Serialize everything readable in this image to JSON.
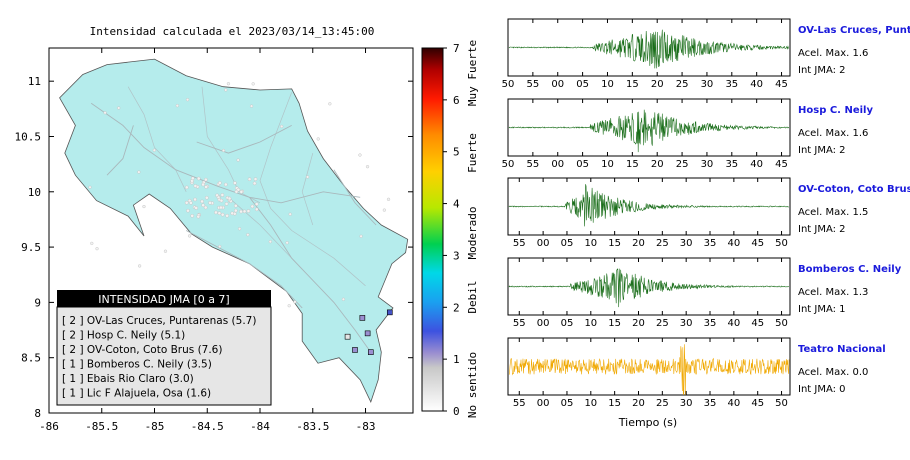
{
  "map": {
    "title": "Intensidad calculada el 2023/03/14_13:45:00",
    "x_ticks": [
      "-86",
      "-85.5",
      "-85",
      "-84.5",
      "-84",
      "-83.5",
      "-83"
    ],
    "y_ticks": [
      "8",
      "8.5",
      "9",
      "9.5",
      "10",
      "10.5",
      "11"
    ],
    "colors": {
      "land": "#b5ecec",
      "roads": "#a9b8bc",
      "border": "#555555"
    }
  },
  "legend": {
    "title": "INTENSIDAD JMA [0 a 7]",
    "items": [
      {
        "text": "[ 2 ]  OV-Las Cruces, Puntarenas (5.7)"
      },
      {
        "text": "[ 2 ]  Hosp C. Neily (5.1)"
      },
      {
        "text": "[ 2 ]  OV-Coton, Coto Brus (7.6)"
      },
      {
        "text": "[ 1 ]  Bomberos C. Neily (3.5)"
      },
      {
        "text": "[ 1 ]  Ebais Rio Claro (3.0)"
      },
      {
        "text": "[ 1 ]  Lic F Alajuela, Osa (1.6)"
      }
    ]
  },
  "colorbar": {
    "ticks": [
      "0",
      "1",
      "2",
      "3",
      "4",
      "5",
      "6",
      "7"
    ],
    "labels": [
      "No sentido",
      "Debil",
      "Moderado",
      "Fuerte",
      "Muy Fuerte"
    ]
  },
  "stations_on_map": [
    {
      "lon": -82.77,
      "lat": 8.91,
      "intensity": 2
    },
    {
      "lon": -82.98,
      "lat": 8.72,
      "intensity": 1
    },
    {
      "lon": -83.03,
      "lat": 8.86,
      "intensity": 1
    },
    {
      "lon": -83.1,
      "lat": 8.57,
      "intensity": 1
    },
    {
      "lon": -82.95,
      "lat": 8.55,
      "intensity": 1
    },
    {
      "lon": -83.17,
      "lat": 8.69,
      "intensity": 0
    }
  ],
  "chart_data": {
    "type": "line",
    "xlabel": "Tiempo (s)",
    "panels": [
      {
        "name": "OV-Las Cruces, Puntar",
        "acel": "Acel. Max. 1.6",
        "int": "Int JMA: 2",
        "ticks": [
          "50",
          "55",
          "00",
          "05",
          "10",
          "15",
          "20",
          "25",
          "30",
          "35",
          "40",
          "45"
        ],
        "color": "#1a6e1a",
        "onset": 0.3,
        "peak": 0.5,
        "peak_amp": 1.0,
        "decay": 0.16,
        "noise": 0.02
      },
      {
        "name": "Hosp C. Neily",
        "acel": "Acel. Max. 1.6",
        "int": "Int JMA: 2",
        "ticks": [
          "50",
          "55",
          "00",
          "05",
          "10",
          "15",
          "20",
          "25",
          "30",
          "35",
          "40",
          "45"
        ],
        "color": "#1a6e1a",
        "onset": 0.29,
        "peak": 0.46,
        "peak_amp": 1.0,
        "decay": 0.14,
        "noise": 0.02
      },
      {
        "name": "OV-Coton, Coto Brus",
        "acel": "Acel. Max. 1.5",
        "int": "Int JMA: 2",
        "ticks": [
          "55",
          "00",
          "05",
          "10",
          "15",
          "20",
          "25",
          "30",
          "35",
          "40",
          "45",
          "50"
        ],
        "color": "#1a6e1a",
        "onset": 0.2,
        "peak": 0.27,
        "peak_amp": 0.9,
        "decay": 0.12,
        "noise": 0.02
      },
      {
        "name": "Bomberos C. Neily",
        "acel": "Acel. Max. 1.3",
        "int": "Int JMA: 1",
        "ticks": [
          "55",
          "00",
          "05",
          "10",
          "15",
          "20",
          "25",
          "30",
          "35",
          "40",
          "45",
          "50"
        ],
        "color": "#1a6e1a",
        "onset": 0.22,
        "peak": 0.38,
        "peak_amp": 0.9,
        "decay": 0.12,
        "noise": 0.02
      },
      {
        "name": "Teatro Nacional",
        "acel": "Acel. Max. 0.0",
        "int": "Int JMA: 0",
        "ticks": [
          "55",
          "00",
          "05",
          "10",
          "15",
          "20",
          "25",
          "30",
          "35",
          "40",
          "45",
          "50"
        ],
        "color": "#f0a800",
        "onset": 0.0,
        "peak": 0.62,
        "peak_amp": 0.9,
        "decay": 0.0,
        "noise": 0.3
      }
    ]
  }
}
